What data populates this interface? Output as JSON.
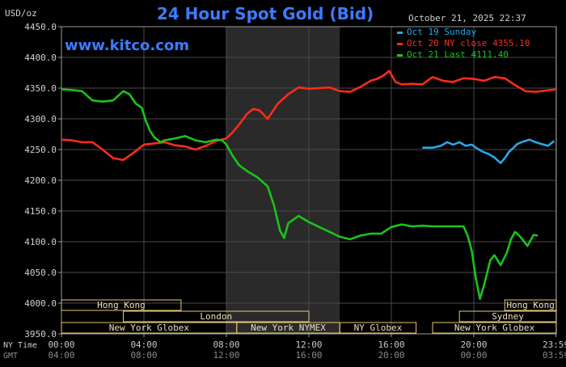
{
  "chart_data": {
    "type": "line",
    "title": "24 Hour Spot Gold (Bid)",
    "ylabel": "USD/oz",
    "watermark": "www.kitco.com",
    "date_stamp": "October 21, 2025 22:37",
    "ylim": [
      3950,
      4450
    ],
    "y_ticks": [
      3950,
      4000,
      4050,
      4100,
      4150,
      4200,
      4250,
      4300,
      4350,
      4400,
      4450
    ],
    "y_tick_labels": [
      "3950.0",
      "4000.0",
      "4050.0",
      "4100.0",
      "4150.0",
      "4200.0",
      "4250.0",
      "4300.0",
      "4350.0",
      "4400.0",
      "4450.0"
    ],
    "x_range_hours": [
      0,
      24
    ],
    "x_tick_hours": [
      0,
      4,
      8,
      12,
      16,
      20,
      23.983
    ],
    "time_rows": [
      {
        "label": "NY Time",
        "ticks": [
          "00:00",
          "04:00",
          "08:00",
          "12:00",
          "16:00",
          "20:00",
          "23:59"
        ],
        "color": "#c8c8c8"
      },
      {
        "label": "GMT",
        "ticks": [
          "04:00",
          "08:00",
          "12:00",
          "16:00",
          "20:00",
          "00:00",
          "03:59"
        ],
        "color": "#8a8a8a"
      }
    ],
    "shaded_session_hours": [
      8,
      13.5
    ],
    "grid": true,
    "legend_position": "top-right",
    "series": [
      {
        "name": "Oct 19 Sunday",
        "color": "#29a8e8",
        "x": [
          17.5,
          18.0,
          18.4,
          18.7,
          19.0,
          19.3,
          19.6,
          19.9,
          20.1,
          20.4,
          20.7,
          21.0,
          21.3,
          21.5,
          21.7,
          21.9,
          22.1,
          22.4,
          22.7,
          23.0,
          23.3,
          23.6,
          23.9
        ],
        "y": [
          4253,
          4253,
          4256,
          4262,
          4258,
          4262,
          4256,
          4258,
          4253,
          4247,
          4243,
          4237,
          4228,
          4236,
          4246,
          4252,
          4259,
          4263,
          4266,
          4262,
          4259,
          4256,
          4264
        ]
      },
      {
        "name": "Oct 20 NY close 4355.10",
        "color": "#ff2b1c",
        "x": [
          0,
          0.5,
          1,
          1.5,
          2,
          2.5,
          3,
          3.5,
          4,
          4.5,
          5,
          5.5,
          6,
          6.5,
          7,
          7.5,
          8,
          8.3,
          8.6,
          9,
          9.3,
          9.6,
          10,
          10.5,
          11,
          11.5,
          12,
          12.5,
          13,
          13.5,
          14,
          14.5,
          15,
          15.3,
          15.6,
          15.9,
          16.2,
          16.5,
          17,
          17.5,
          18,
          18.5,
          19,
          19.5,
          20,
          20.5,
          21,
          21.5,
          22,
          22.5,
          23,
          23.5,
          24
        ],
        "y": [
          4266,
          4265,
          4262,
          4262,
          4250,
          4236,
          4233,
          4245,
          4258,
          4260,
          4262,
          4257,
          4255,
          4250,
          4256,
          4264,
          4268,
          4278,
          4290,
          4308,
          4316,
          4314,
          4300,
          4325,
          4340,
          4351,
          4349,
          4350,
          4351,
          4345,
          4344,
          4352,
          4362,
          4365,
          4370,
          4378,
          4360,
          4356,
          4357,
          4356,
          4368,
          4362,
          4360,
          4366,
          4365,
          4362,
          4368,
          4366,
          4355,
          4345,
          4344,
          4346,
          4348
        ]
      },
      {
        "name": "Oct 21 Last 4111.40",
        "color": "#19c41b",
        "x": [
          0,
          0.5,
          1,
          1.5,
          2,
          2.5,
          3,
          3.3,
          3.6,
          3.9,
          4.1,
          4.3,
          4.5,
          4.8,
          5,
          5.5,
          6,
          6.5,
          7,
          7.5,
          7.8,
          8,
          8.3,
          8.6,
          9,
          9.5,
          10,
          10.3,
          10.6,
          10.8,
          11,
          11.5,
          12,
          12.5,
          13,
          13.5,
          14,
          14.5,
          15,
          15.5,
          16,
          16.5,
          17,
          17.5,
          18,
          18.5,
          19,
          19.5,
          19.7,
          19.9,
          20.1,
          20.3,
          20.5,
          20.8,
          21,
          21.3,
          21.6,
          21.8,
          22,
          22.2,
          22.4,
          22.6,
          22.9,
          23.1
        ],
        "y": [
          4348,
          4347,
          4345,
          4330,
          4328,
          4330,
          4345,
          4340,
          4325,
          4318,
          4296,
          4280,
          4270,
          4262,
          4265,
          4268,
          4272,
          4265,
          4262,
          4266,
          4265,
          4258,
          4240,
          4225,
          4215,
          4205,
          4190,
          4160,
          4118,
          4106,
          4130,
          4142,
          4132,
          4124,
          4116,
          4108,
          4104,
          4110,
          4113,
          4113,
          4124,
          4128,
          4125,
          4126,
          4125,
          4125,
          4125,
          4125,
          4110,
          4085,
          4040,
          4007,
          4030,
          4070,
          4078,
          4062,
          4082,
          4104,
          4116,
          4110,
          4102,
          4093,
          4111,
          4110
        ]
      }
    ],
    "session_rows": [
      {
        "label": "Hong Kong",
        "start_hour": 0,
        "end_hour": 5.8
      },
      {
        "label": "Hong Kong",
        "start_hour": 21.5,
        "end_hour": 24
      },
      {
        "label": "London",
        "start_hour": 3.0,
        "end_hour": 12.0
      },
      {
        "label": "Sydney",
        "start_hour": 19.3,
        "end_hour": 24
      },
      {
        "label": "New York Globex",
        "start_hour": 0,
        "end_hour": 8.5
      },
      {
        "label": "New York NYMEX",
        "start_hour": 8.5,
        "end_hour": 13.5
      },
      {
        "label": "NY Globex",
        "start_hour": 13.5,
        "end_hour": 17.2
      },
      {
        "label": "New York Globex",
        "start_hour": 18.0,
        "end_hour": 24
      }
    ]
  }
}
